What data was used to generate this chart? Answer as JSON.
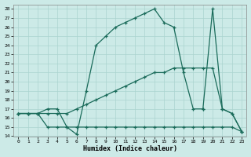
{
  "xlabel": "Humidex (Indice chaleur)",
  "bg_color": "#cceae7",
  "grid_color": "#aad4d0",
  "line_color": "#1a6b5a",
  "xlim": [
    -0.5,
    23.5
  ],
  "ylim": [
    14,
    28.5
  ],
  "xticks": [
    0,
    1,
    2,
    3,
    4,
    5,
    6,
    7,
    8,
    9,
    10,
    11,
    12,
    13,
    14,
    15,
    16,
    17,
    18,
    19,
    20,
    21,
    22,
    23
  ],
  "yticks": [
    14,
    15,
    16,
    17,
    18,
    19,
    20,
    21,
    22,
    23,
    24,
    25,
    26,
    27,
    28
  ],
  "series": [
    {
      "x": [
        0,
        1,
        2,
        3,
        4,
        5,
        6,
        7,
        8,
        9,
        10,
        11,
        12,
        13,
        14,
        15,
        16,
        17,
        18,
        19
      ],
      "y": [
        16.5,
        16.5,
        16.5,
        17,
        17,
        15,
        14.2,
        19,
        24,
        25,
        26,
        26.5,
        27,
        27.5,
        28,
        26.5,
        26,
        21,
        17,
        17
      ]
    },
    {
      "x": [
        19,
        20,
        21,
        22,
        23
      ],
      "y": [
        17,
        28,
        17,
        16.5,
        14.5
      ]
    },
    {
      "x": [
        0,
        1,
        2,
        3,
        4,
        5,
        6,
        7,
        8,
        9,
        10,
        11,
        12,
        13,
        14,
        15,
        16,
        17,
        18,
        19,
        20,
        21,
        22,
        23
      ],
      "y": [
        16.5,
        16.5,
        16.5,
        15,
        15,
        15,
        15,
        15,
        15,
        15,
        15,
        15,
        15,
        15,
        15,
        15,
        15,
        15,
        15,
        15,
        15,
        15,
        15,
        14.5
      ]
    },
    {
      "x": [
        0,
        1,
        2,
        3,
        4,
        5,
        6,
        7,
        8,
        9,
        10,
        11,
        12,
        13,
        14,
        15,
        16,
        17,
        18,
        19,
        20,
        21,
        22,
        23
      ],
      "y": [
        16.5,
        16.5,
        16.5,
        16.5,
        16.5,
        16.5,
        17,
        17.5,
        18,
        18.5,
        19,
        19.5,
        20,
        20.5,
        21,
        21,
        21.5,
        21.5,
        21.5,
        21.5,
        21.5,
        17,
        16.5,
        14.5
      ]
    }
  ]
}
